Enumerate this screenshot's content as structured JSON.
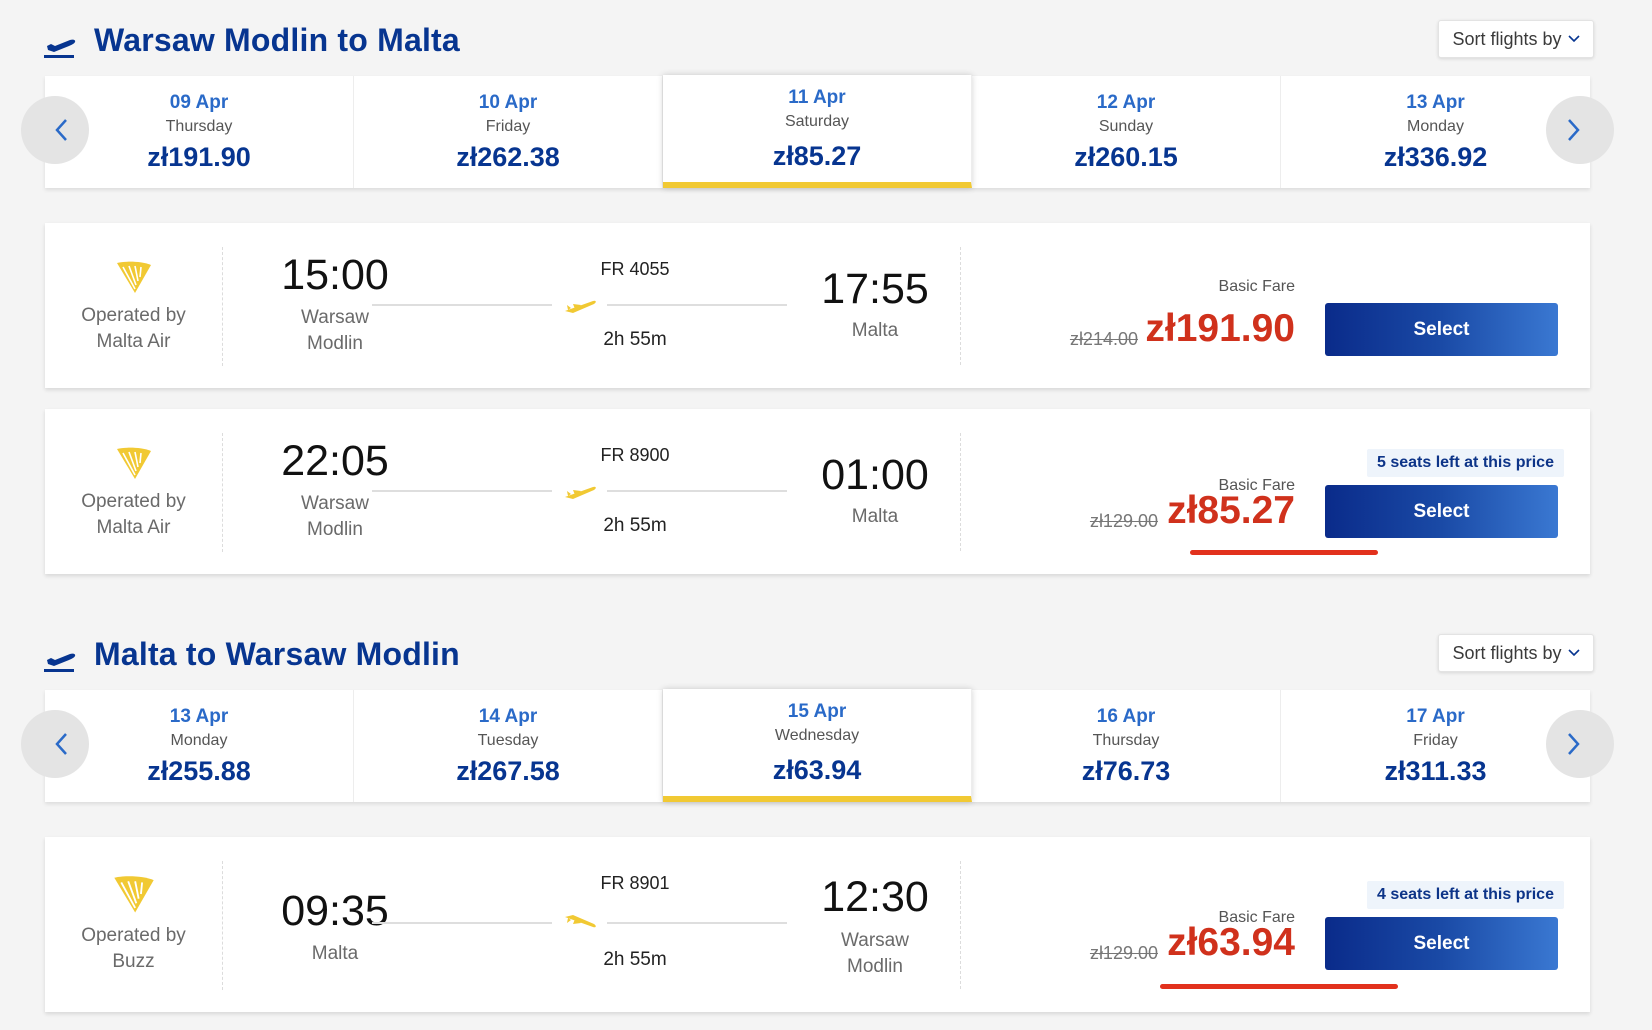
{
  "outbound": {
    "title": "Warsaw Modlin to Malta",
    "sort_label": "Sort flights by",
    "dates": [
      {
        "date": "09 Apr",
        "weekday": "Thursday",
        "price": "zł191.90"
      },
      {
        "date": "10 Apr",
        "weekday": "Friday",
        "price": "zł262.38"
      },
      {
        "date": "11 Apr",
        "weekday": "Saturday",
        "price": "zł85.27",
        "active": true
      },
      {
        "date": "12 Apr",
        "weekday": "Sunday",
        "price": "zł260.15"
      },
      {
        "date": "13 Apr",
        "weekday": "Monday",
        "price": "zł336.92"
      }
    ],
    "flights": [
      {
        "operator_line1": "Operated by",
        "operator_line2": "Malta Air",
        "dep_time": "15:00",
        "dep_city_1": "Warsaw",
        "dep_city_2": "Modlin",
        "flight_no": "FR 4055",
        "duration": "2h 55m",
        "arr_time": "17:55",
        "arr_city_1": "Malta",
        "arr_city_2": "",
        "fare_label": "Basic Fare",
        "old_price": "zł214.00",
        "price": "zł191.90",
        "seats": "",
        "select": "Select"
      },
      {
        "operator_line1": "Operated by",
        "operator_line2": "Malta Air",
        "dep_time": "22:05",
        "dep_city_1": "Warsaw",
        "dep_city_2": "Modlin",
        "flight_no": "FR 8900",
        "duration": "2h 55m",
        "arr_time": "01:00",
        "arr_city_1": "Malta",
        "arr_city_2": "",
        "fare_label": "Basic Fare",
        "old_price": "zł129.00",
        "price": "zł85.27",
        "seats": "5 seats left at this price",
        "select": "Select"
      }
    ]
  },
  "return": {
    "title": "Malta to Warsaw Modlin",
    "sort_label": "Sort flights by",
    "dates": [
      {
        "date": "13 Apr",
        "weekday": "Monday",
        "price": "zł255.88"
      },
      {
        "date": "14 Apr",
        "weekday": "Tuesday",
        "price": "zł267.58"
      },
      {
        "date": "15 Apr",
        "weekday": "Wednesday",
        "price": "zł63.94",
        "active": true
      },
      {
        "date": "16 Apr",
        "weekday": "Thursday",
        "price": "zł76.73"
      },
      {
        "date": "17 Apr",
        "weekday": "Friday",
        "price": "zł311.33"
      }
    ],
    "flights": [
      {
        "operator_line1": "Operated by",
        "operator_line2": "Buzz",
        "dep_time": "09:35",
        "dep_city_1": "Malta",
        "dep_city_2": "",
        "flight_no": "FR 8901",
        "duration": "2h 55m",
        "arr_time": "12:30",
        "arr_city_1": "Warsaw",
        "arr_city_2": "Modlin",
        "fare_label": "Basic Fare",
        "old_price": "zł129.00",
        "price": "zł63.94",
        "seats": "4 seats left at this price",
        "select": "Select"
      }
    ]
  },
  "colors": {
    "brand_blue": "#073590",
    "date_blue": "#2a6ac8",
    "price_red": "#d0311c",
    "active_yellow": "#f1c933",
    "underline_red": "#e2311d"
  },
  "icons": {
    "departure": "plane-departure-icon",
    "flight": "plane-icon",
    "operator_logo": "harp-logo-icon",
    "prev": "chevron-left-icon",
    "next": "chevron-right-icon",
    "sort": "chevron-down-icon"
  }
}
